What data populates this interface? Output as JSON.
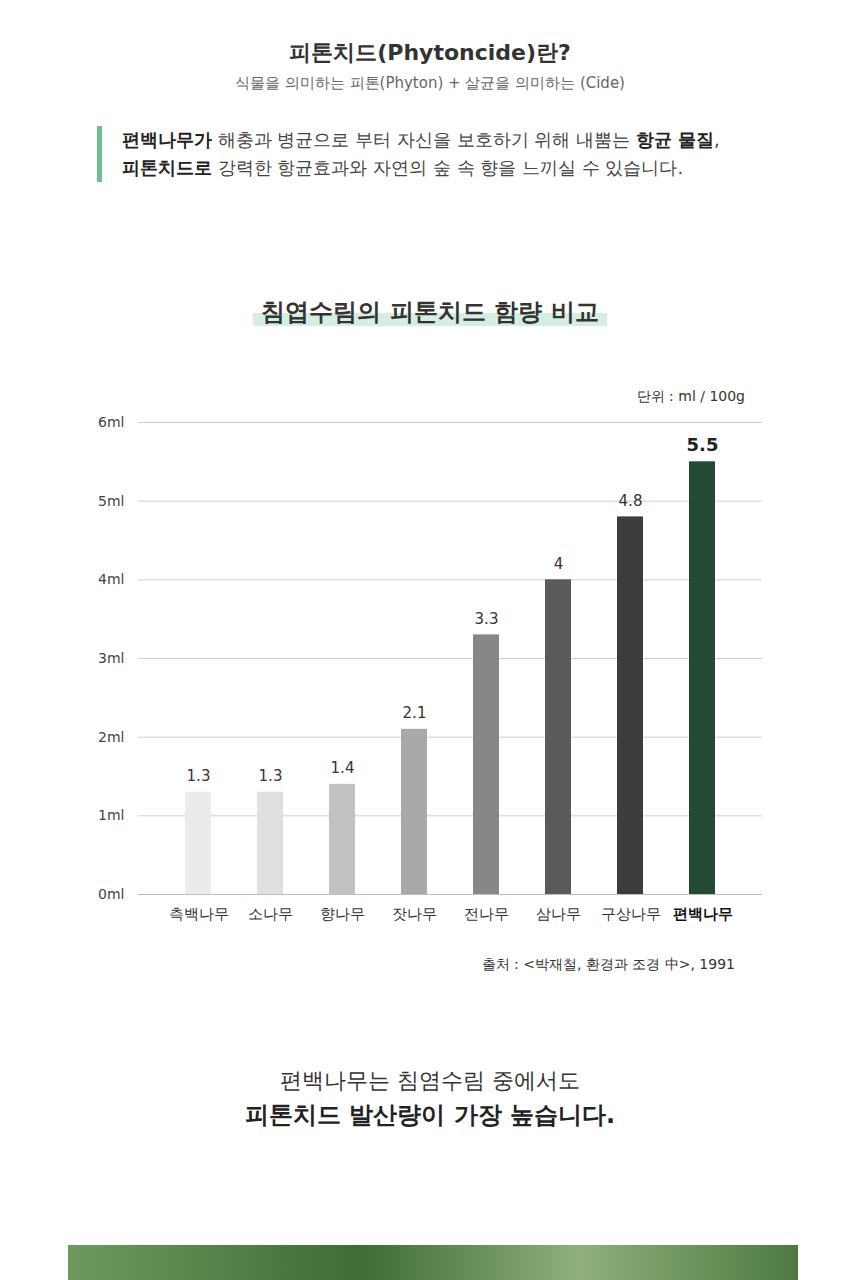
{
  "header": {
    "title": "피톤치드(Phytoncide)란?",
    "subtitle": "식물을 의미하는 피톤(Phyton) + 살균을 의미하는 (Cide)"
  },
  "intro": {
    "lines": [
      [
        {
          "text": "편백나무가",
          "bold": true
        },
        {
          "text": " 해충과 병균으로 부터 자신을 보호하기 위해 내뿜는 ",
          "bold": false
        },
        {
          "text": "항균 물질",
          "bold": true
        },
        {
          "text": ",",
          "bold": false
        }
      ],
      [
        {
          "text": "피톤치드로",
          "bold": true
        },
        {
          "text": " 강력한 항균효과와 자연의 숲 속 향을 느끼실 수 있습니다.",
          "bold": false
        }
      ]
    ]
  },
  "chart_data": {
    "type": "bar",
    "title": "침엽수림의 피톤치드 함량 비교",
    "ylabel": "단위 : ml / 100g",
    "categories": [
      "측백나무",
      "소나무",
      "향나무",
      "잣나무",
      "전나무",
      "삼나무",
      "구상나무",
      "편백나무"
    ],
    "values": [
      1.3,
      1.3,
      1.4,
      2.1,
      3.3,
      4,
      4.8,
      5.5
    ],
    "colors": [
      "#ebebeb",
      "#e0e0e0",
      "#c2c2c2",
      "#a9a9ab",
      "#87878a",
      "#5a5a5c",
      "#3d3d3f",
      "#244a34"
    ],
    "ylim": [
      0,
      6
    ],
    "yticks": [
      {
        "value": 0,
        "label": "0ml"
      },
      {
        "value": 1,
        "label": "1ml"
      },
      {
        "value": 2,
        "label": "2ml"
      },
      {
        "value": 3,
        "label": "3ml"
      },
      {
        "value": 4,
        "label": "4ml"
      },
      {
        "value": 5,
        "label": "5ml"
      },
      {
        "value": 6,
        "label": "6ml"
      }
    ],
    "grid": true,
    "data_labels": true
  },
  "source": "출처 : <박재철, 환경과 조경 中>, 1991",
  "conclusion": {
    "lines": [
      {
        "text": "편백나무는 침염수림 중에서도",
        "bold": false
      },
      {
        "text": "피톤치드 발산량이 가장 높습니다.",
        "bold": true
      }
    ]
  }
}
